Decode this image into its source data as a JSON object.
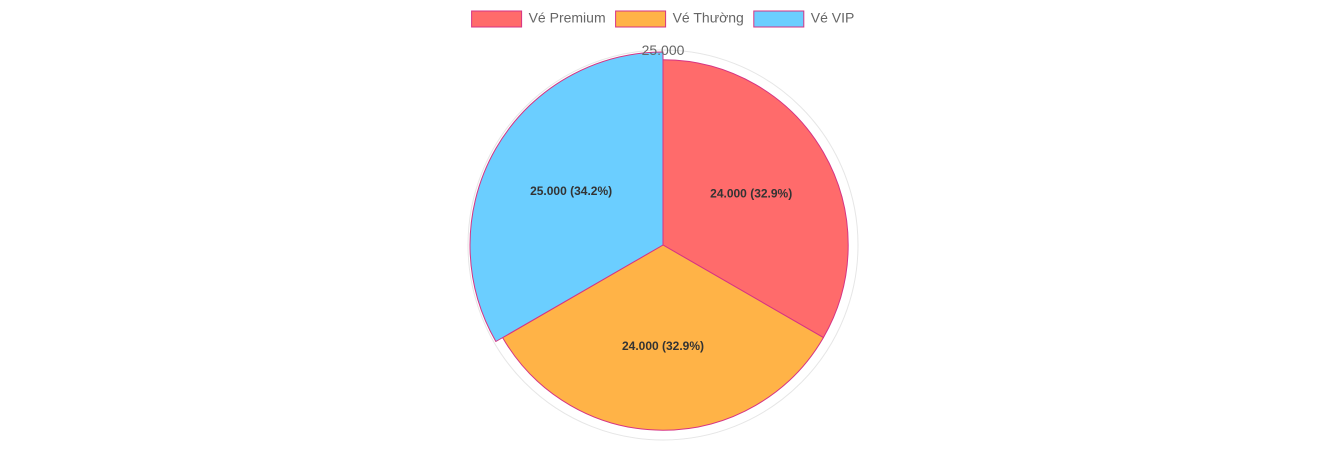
{
  "chart_data": {
    "type": "pie",
    "categories": [
      "Vé Premium",
      "Vé Thường",
      "Vé VIP"
    ],
    "values": [
      24000,
      24000,
      25000
    ],
    "value_labels": [
      "24.000",
      "24.000",
      "25.000"
    ],
    "percent_labels": [
      "32.9%",
      "32.9%",
      "34.2%"
    ],
    "colors": [
      "#ff6b6b",
      "#ffb347",
      "#6bceff"
    ],
    "border_color": "#d63384",
    "legend_position": "top",
    "radial_scale": {
      "max": 25000,
      "tick_label": "25.000",
      "grid": true
    }
  }
}
